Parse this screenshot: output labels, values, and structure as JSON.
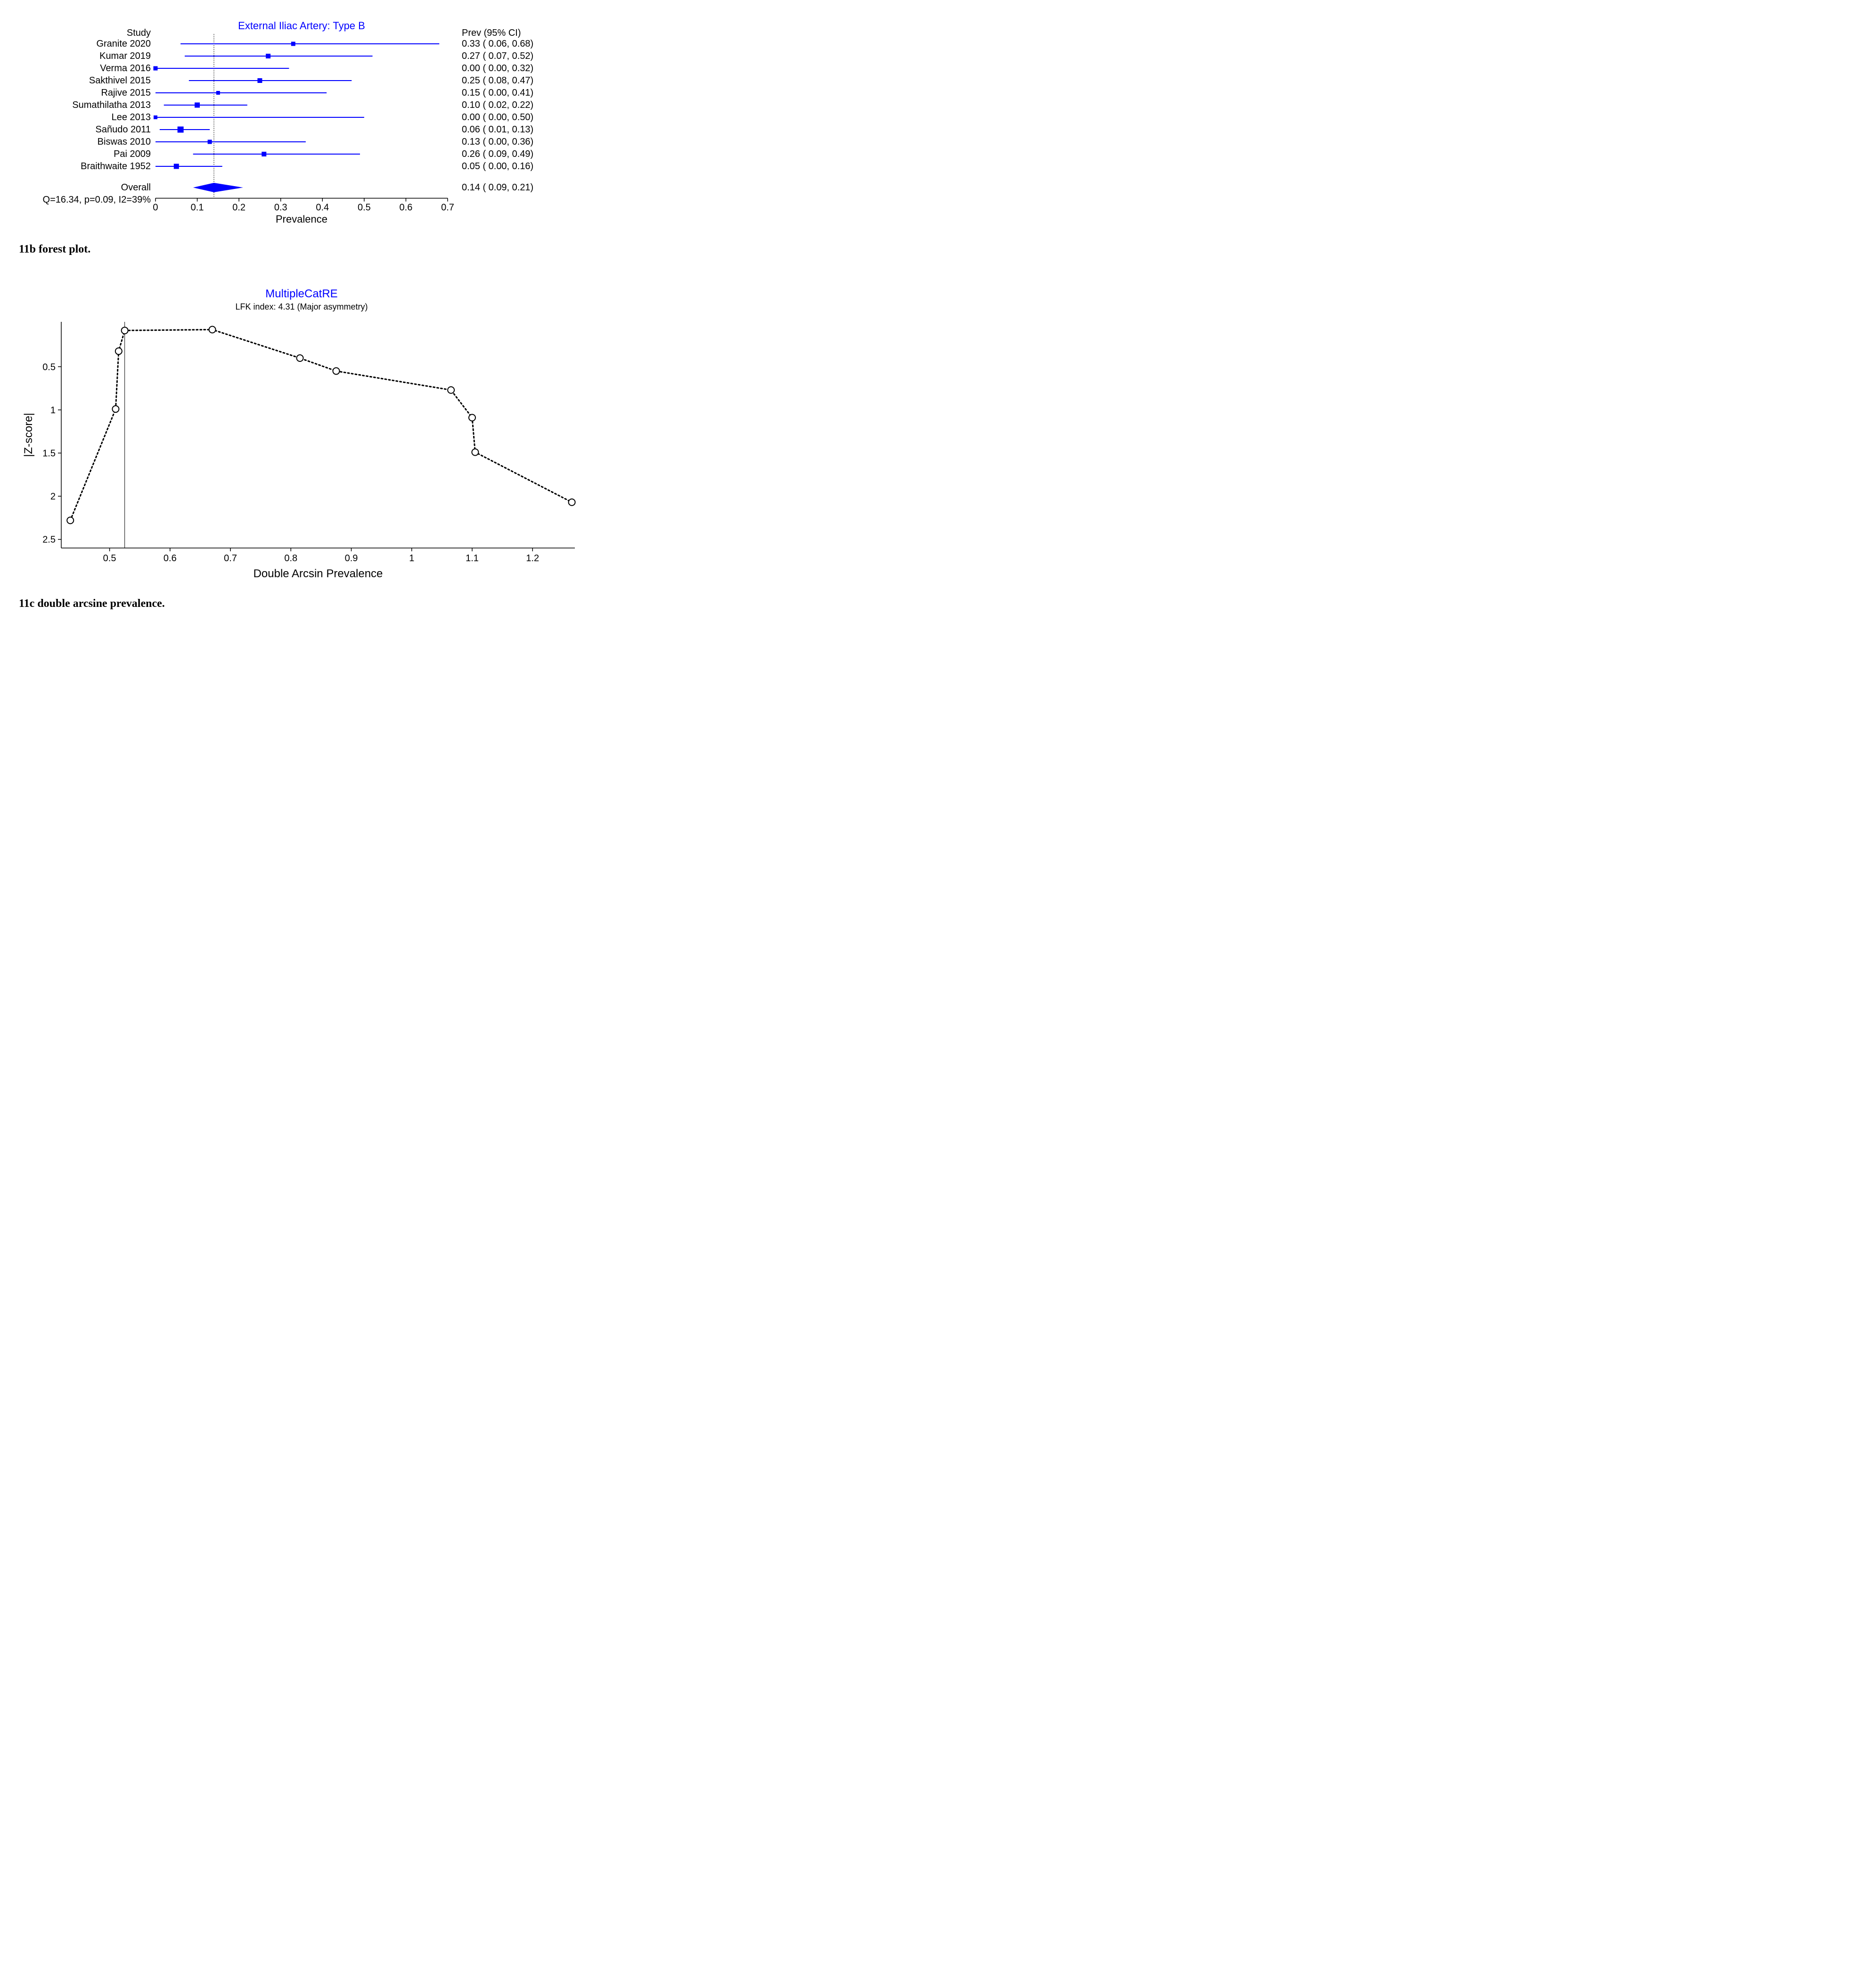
{
  "forest": {
    "type": "forest",
    "title": "External Iliac Artery: Type B",
    "title_color": "#0000ff",
    "title_fontsize": 22,
    "xlabel": "Prevalence",
    "label_fontsize": 22,
    "xlim": [
      0,
      0.7
    ],
    "xticks": [
      0,
      0.1,
      0.2,
      0.3,
      0.4,
      0.5,
      0.6,
      0.7
    ],
    "overall_line_x": 0.14,
    "marker_size": 10,
    "marker_color": "#0000ff",
    "line_color": "#0000ff",
    "axis_color": "#000000",
    "text_color": "#000000",
    "left_header": "Study",
    "right_header": "Prev (95% CI)",
    "studies": [
      {
        "name": "Granite 2020",
        "prev": "0.33",
        "lo": "0.06",
        "hi": "0.68",
        "p": 0.33,
        "l": 0.06,
        "h": 0.68,
        "ms": 9
      },
      {
        "name": "Kumar 2019",
        "prev": "0.27",
        "lo": "0.07",
        "hi": "0.52",
        "p": 0.27,
        "l": 0.07,
        "h": 0.52,
        "ms": 10
      },
      {
        "name": "Verma 2016",
        "prev": "0.00",
        "lo": "0.00",
        "hi": "0.32",
        "p": 0.0,
        "l": 0.0,
        "h": 0.32,
        "ms": 9
      },
      {
        "name": "Sakthivel 2015",
        "prev": "0.25",
        "lo": "0.08",
        "hi": "0.47",
        "p": 0.25,
        "l": 0.08,
        "h": 0.47,
        "ms": 10
      },
      {
        "name": "Rajive 2015",
        "prev": "0.15",
        "lo": "0.00",
        "hi": "0.41",
        "p": 0.15,
        "l": 0.0,
        "h": 0.41,
        "ms": 8
      },
      {
        "name": "Sumathilatha 2013",
        "prev": "0.10",
        "lo": "0.02",
        "hi": "0.22",
        "p": 0.1,
        "l": 0.02,
        "h": 0.22,
        "ms": 11
      },
      {
        "name": "Lee 2013",
        "prev": "0.00",
        "lo": "0.00",
        "hi": "0.50",
        "p": 0.0,
        "l": 0.0,
        "h": 0.5,
        "ms": 8
      },
      {
        "name": "Sañudo 2011",
        "prev": "0.06",
        "lo": "0.01",
        "hi": "0.13",
        "p": 0.06,
        "l": 0.01,
        "h": 0.13,
        "ms": 13
      },
      {
        "name": "Biswas 2010",
        "prev": "0.13",
        "lo": "0.00",
        "hi": "0.36",
        "p": 0.13,
        "l": 0.0,
        "h": 0.36,
        "ms": 9
      },
      {
        "name": "Pai 2009",
        "prev": "0.26",
        "lo": "0.09",
        "hi": "0.49",
        "p": 0.26,
        "l": 0.09,
        "h": 0.49,
        "ms": 10
      },
      {
        "name": "Braithwaite 1952",
        "prev": "0.05",
        "lo": "0.00",
        "hi": "0.16",
        "p": 0.05,
        "l": 0.0,
        "h": 0.16,
        "ms": 11
      }
    ],
    "overall": {
      "label": "Overall",
      "prev": "0.14",
      "lo": "0.09",
      "hi": "0.21",
      "p": 0.14,
      "l": 0.09,
      "h": 0.21
    },
    "het_text": "Q=16.34, p=0.09, I2=39%",
    "caption": "11b forest plot.",
    "background_color": "#ffffff"
  },
  "doi": {
    "type": "line",
    "title": "MultipleCatRE",
    "title_color": "#0000ff",
    "title_fontsize": 24,
    "subtitle": "LFK index: 4.31 (Major asymmetry)",
    "subtitle_fontsize": 18,
    "xlabel": "Double Arcsin Prevalence",
    "ylabel": "|Z-score|",
    "label_fontsize": 24,
    "xlim": [
      0.42,
      1.27
    ],
    "ylim": [
      2.6,
      -0.02
    ],
    "xticks": [
      0.5,
      0.6,
      0.7,
      0.8,
      0.9,
      1,
      1.1,
      1.2
    ],
    "yticks": [
      0.5,
      1,
      1.5,
      2,
      2.5
    ],
    "vline_x": 0.525,
    "marker_radius": 7,
    "marker_fill": "#ffffff",
    "marker_stroke": "#000000",
    "marker_stroke_width": 2,
    "line_stroke": "#000000",
    "line_dash": "3,5",
    "line_width": 3,
    "axis_color": "#000000",
    "points": [
      {
        "x": 0.435,
        "y": 2.28
      },
      {
        "x": 0.51,
        "y": 0.99
      },
      {
        "x": 0.515,
        "y": 0.32
      },
      {
        "x": 0.525,
        "y": 0.08
      },
      {
        "x": 0.67,
        "y": 0.07
      },
      {
        "x": 0.815,
        "y": 0.4
      },
      {
        "x": 0.875,
        "y": 0.55
      },
      {
        "x": 1.065,
        "y": 0.77
      },
      {
        "x": 1.1,
        "y": 1.09
      },
      {
        "x": 1.105,
        "y": 1.49
      },
      {
        "x": 1.265,
        "y": 2.07
      }
    ],
    "caption": "11c double arcsine prevalence.",
    "background_color": "#ffffff"
  }
}
